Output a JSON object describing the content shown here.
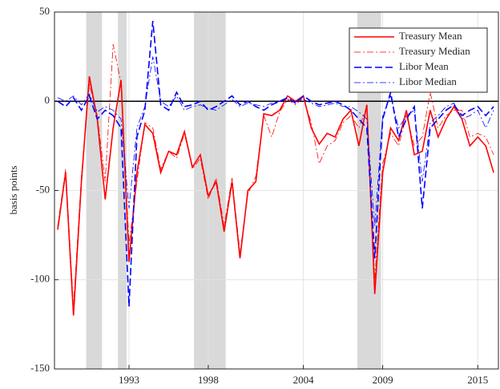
{
  "chart_data": {
    "type": "line",
    "y_label": "basis points",
    "x": [
      1988.5,
      1989,
      1989.5,
      1990,
      1990.5,
      1991,
      1991.5,
      1992,
      1992.5,
      1993,
      1993.5,
      1994,
      1994.5,
      1995,
      1995.5,
      1996,
      1996.5,
      1997,
      1997.5,
      1998,
      1998.5,
      1999,
      1999.5,
      2000,
      2000.5,
      2001,
      2001.5,
      2002,
      2002.5,
      2003,
      2003.5,
      2004,
      2004.5,
      2005,
      2005.5,
      2006,
      2006.5,
      2007,
      2007.5,
      2008,
      2008.5,
      2009,
      2009.5,
      2010,
      2010.5,
      2011,
      2011.5,
      2012,
      2012.5,
      2013,
      2013.5,
      2014,
      2014.5,
      2015,
      2015.5,
      2016
    ],
    "series": [
      {
        "name": "Treasury Mean",
        "color": "#ff0000",
        "dash": "solid",
        "width": 1.6,
        "values": [
          -72,
          -40,
          -120,
          -45,
          14,
          -10,
          -55,
          -15,
          12,
          -90,
          -40,
          -13,
          -18,
          -40,
          -28,
          -30,
          -17,
          -37,
          -30,
          -53,
          -45,
          -73,
          -45,
          -88,
          -50,
          -45,
          -7,
          -8,
          -5,
          3,
          0,
          3,
          -15,
          -24,
          -18,
          -20,
          -10,
          -5,
          -25,
          -2,
          -108,
          -40,
          -15,
          -22,
          -5,
          -30,
          -28,
          -5,
          -20,
          -10,
          -3,
          -10,
          -25,
          -20,
          -25,
          -40
        ]
      },
      {
        "name": "Treasury Median",
        "color": "#ff0000",
        "dash": "dashdot",
        "width": 0.8,
        "values": [
          -70,
          -38,
          -115,
          -42,
          10,
          -8,
          -45,
          32,
          10,
          -80,
          -45,
          -12,
          -15,
          -38,
          -28,
          -32,
          -18,
          -38,
          -32,
          -55,
          -43,
          -70,
          -43,
          -85,
          -52,
          -42,
          -8,
          -20,
          -6,
          1,
          -2,
          2,
          -12,
          -35,
          -25,
          -22,
          -12,
          -8,
          -15,
          -3,
          -100,
          -35,
          -18,
          -25,
          -8,
          -25,
          -20,
          5,
          -15,
          -8,
          -5,
          -5,
          -20,
          -18,
          -20,
          -30
        ]
      },
      {
        "name": "Libor Mean",
        "color": "#0000ff",
        "dash": "dashed",
        "width": 1.6,
        "values": [
          0,
          -3,
          2,
          -5,
          3,
          -10,
          -5,
          -8,
          -15,
          -115,
          -20,
          -5,
          45,
          -2,
          -5,
          5,
          -3,
          -2,
          0,
          -5,
          -3,
          0,
          3,
          -2,
          0,
          -3,
          -5,
          -2,
          0,
          2,
          -1,
          3,
          0,
          -2,
          -1,
          0,
          -2,
          -5,
          -10,
          -15,
          -88,
          -10,
          5,
          -20,
          -10,
          -3,
          -60,
          -15,
          -10,
          -5,
          -2,
          -8,
          -5,
          -3,
          -8,
          -3
        ]
      },
      {
        "name": "Libor Median",
        "color": "#0000ff",
        "dash": "dashdot",
        "width": 0.8,
        "values": [
          2,
          0,
          3,
          -2,
          4,
          -6,
          -3,
          -5,
          -10,
          -60,
          -15,
          -3,
          25,
          0,
          -3,
          3,
          -5,
          -3,
          -2,
          -4,
          -5,
          -2,
          1,
          -3,
          -1,
          -2,
          -3,
          -1,
          0,
          1,
          0,
          1,
          -1,
          -3,
          -2,
          -1,
          -3,
          -3,
          -6,
          -10,
          -70,
          -8,
          3,
          -15,
          -8,
          -5,
          -45,
          -12,
          -8,
          -3,
          -1,
          -10,
          -8,
          -5,
          -15,
          -5
        ]
      }
    ],
    "xlim": [
      1988.3,
      2016.3
    ],
    "xticks": [
      1993,
      1998,
      2004,
      2009,
      2015
    ],
    "ylim": [
      -150,
      50
    ],
    "yticks": [
      -150,
      -100,
      -50,
      0,
      50
    ],
    "grid": true,
    "zero_line": 0,
    "shaded_periods": [
      [
        1990.3,
        1991.3
      ],
      [
        1992.3,
        1992.85
      ],
      [
        1997.1,
        1999.1
      ],
      [
        2007.4,
        2008.9
      ]
    ],
    "shade_color": "#d9d9d9",
    "legend": "upper-right"
  }
}
